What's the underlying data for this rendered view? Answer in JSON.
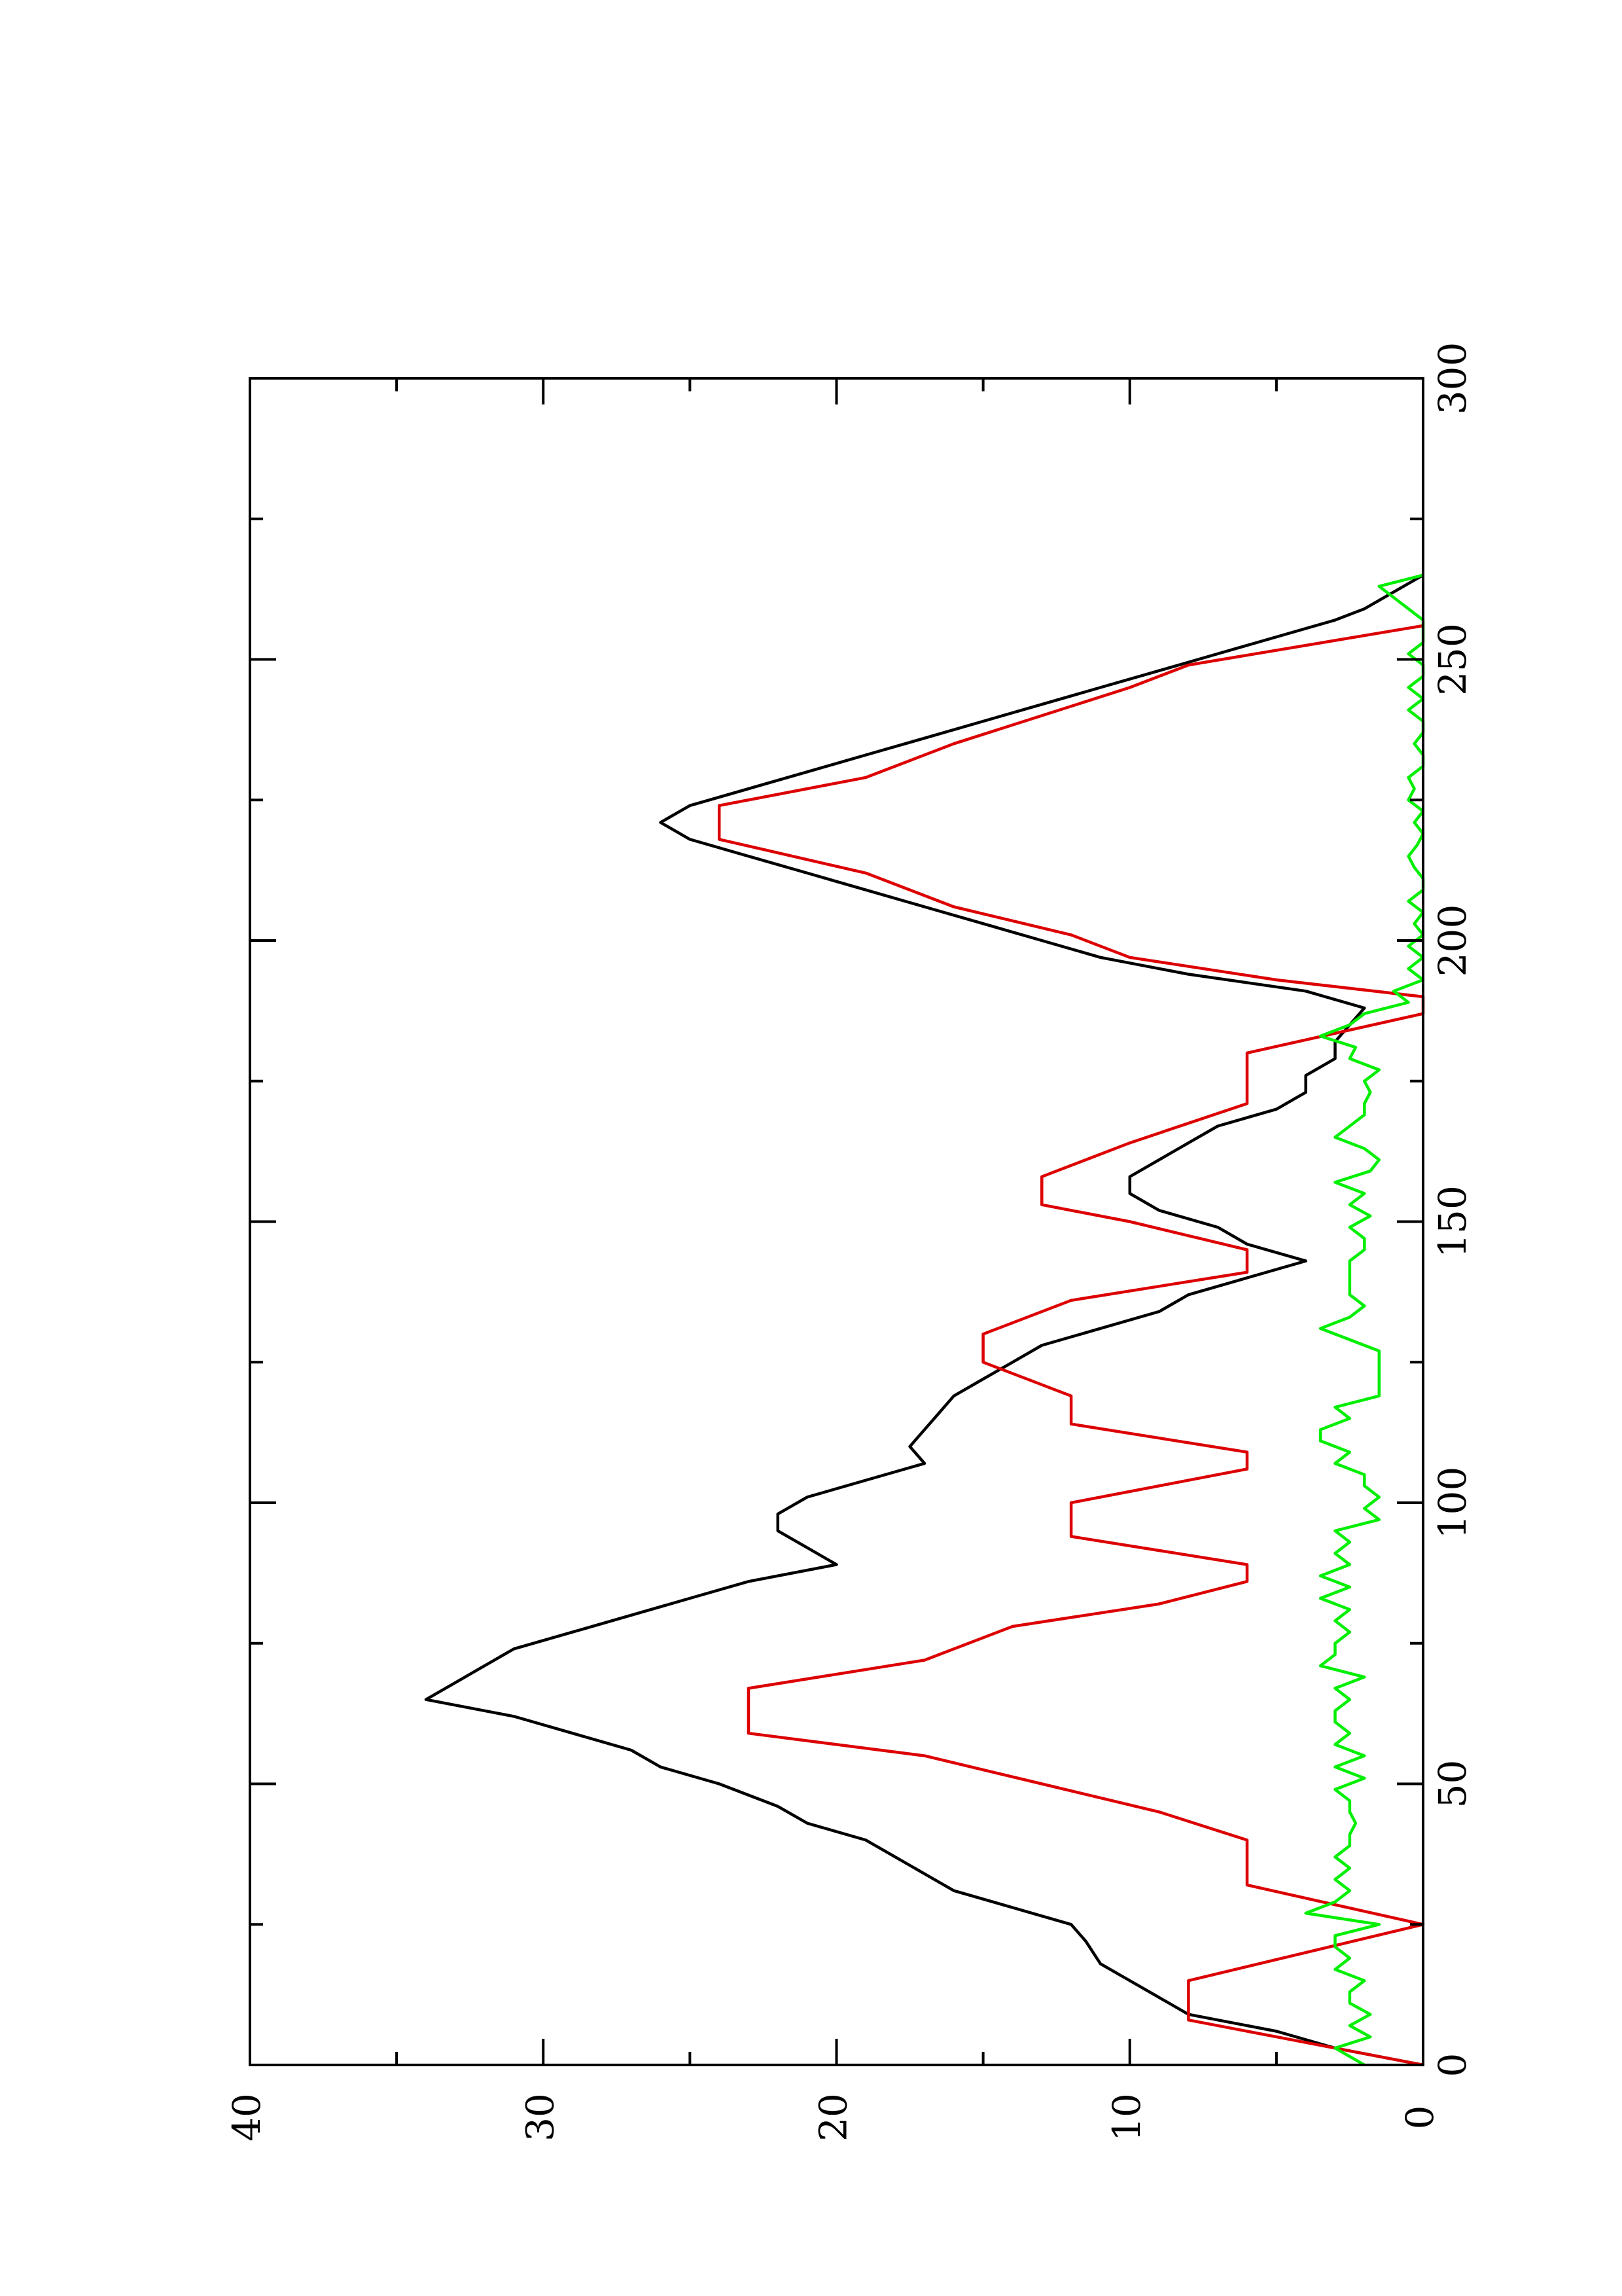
{
  "chart_data": {
    "type": "line",
    "orientation": "rotated-90-ccw",
    "title": "",
    "xlabel": "",
    "ylabel": "",
    "xlim": [
      0,
      300
    ],
    "ylim": [
      0,
      40
    ],
    "x_ticks": [
      0,
      50,
      100,
      150,
      200,
      250,
      300
    ],
    "x_tick_labels": [
      "0",
      "50",
      "100",
      "150",
      "200",
      "250",
      "300"
    ],
    "y_ticks": [
      0,
      10,
      20,
      30,
      40
    ],
    "y_tick_labels": [
      "0",
      "10",
      "20",
      "30",
      "40"
    ],
    "grid": false,
    "legend": "none",
    "series": [
      {
        "color": "#000000",
        "points": [
          [
            0,
            0
          ],
          [
            3,
            3
          ],
          [
            6,
            5
          ],
          [
            9,
            8
          ],
          [
            12,
            9
          ],
          [
            15,
            10
          ],
          [
            18,
            11
          ],
          [
            22,
            11.5
          ],
          [
            25,
            12
          ],
          [
            28,
            14
          ],
          [
            31,
            16
          ],
          [
            34,
            17
          ],
          [
            37,
            18
          ],
          [
            40,
            19
          ],
          [
            43,
            21
          ],
          [
            46,
            22
          ],
          [
            50,
            24
          ],
          [
            53,
            26
          ],
          [
            56,
            27
          ],
          [
            59,
            29
          ],
          [
            62,
            31
          ],
          [
            65,
            34
          ],
          [
            68,
            33
          ],
          [
            71,
            32
          ],
          [
            74,
            31
          ],
          [
            77,
            29
          ],
          [
            80,
            27
          ],
          [
            83,
            25
          ],
          [
            86,
            23
          ],
          [
            89,
            20
          ],
          [
            92,
            21
          ],
          [
            95,
            22
          ],
          [
            98,
            22
          ],
          [
            101,
            21
          ],
          [
            104,
            19
          ],
          [
            107,
            17
          ],
          [
            110,
            17.5
          ],
          [
            113,
            17
          ],
          [
            116,
            16.5
          ],
          [
            119,
            16
          ],
          [
            122,
            15
          ],
          [
            125,
            14
          ],
          [
            128,
            13
          ],
          [
            131,
            11
          ],
          [
            134,
            9
          ],
          [
            137,
            8
          ],
          [
            140,
            6
          ],
          [
            143,
            4
          ],
          [
            146,
            6
          ],
          [
            149,
            7
          ],
          [
            152,
            9
          ],
          [
            155,
            10
          ],
          [
            158,
            10
          ],
          [
            161,
            9
          ],
          [
            164,
            8
          ],
          [
            167,
            7
          ],
          [
            170,
            5
          ],
          [
            173,
            4
          ],
          [
            176,
            4
          ],
          [
            179,
            3
          ],
          [
            182,
            3
          ],
          [
            185,
            2.5
          ],
          [
            188,
            2
          ],
          [
            191,
            4
          ],
          [
            194,
            8
          ],
          [
            197,
            11
          ],
          [
            200,
            13
          ],
          [
            203,
            15
          ],
          [
            206,
            17
          ],
          [
            209,
            19
          ],
          [
            212,
            21
          ],
          [
            215,
            23
          ],
          [
            218,
            25
          ],
          [
            221,
            26
          ],
          [
            224,
            25
          ],
          [
            227,
            23
          ],
          [
            230,
            21
          ],
          [
            233,
            19
          ],
          [
            236,
            17
          ],
          [
            239,
            15
          ],
          [
            242,
            13
          ],
          [
            245,
            11
          ],
          [
            248,
            9
          ],
          [
            251,
            7
          ],
          [
            254,
            5
          ],
          [
            257,
            3
          ],
          [
            259,
            2
          ],
          [
            262,
            1
          ],
          [
            265,
            0
          ]
        ]
      },
      {
        "color": "#dd0000",
        "points": [
          [
            0,
            0
          ],
          [
            5,
            5
          ],
          [
            8,
            8
          ],
          [
            15,
            8
          ],
          [
            25,
            0
          ],
          [
            32,
            6
          ],
          [
            40,
            6
          ],
          [
            45,
            9
          ],
          [
            50,
            13
          ],
          [
            55,
            17
          ],
          [
            59,
            23
          ],
          [
            67,
            23
          ],
          [
            72,
            17
          ],
          [
            78,
            14
          ],
          [
            82,
            9
          ],
          [
            86,
            6
          ],
          [
            89,
            6
          ],
          [
            94,
            12
          ],
          [
            100,
            12
          ],
          [
            106,
            6
          ],
          [
            109,
            6
          ],
          [
            114,
            12
          ],
          [
            119,
            12
          ],
          [
            125,
            15
          ],
          [
            130,
            15
          ],
          [
            136,
            12
          ],
          [
            141,
            6
          ],
          [
            145,
            6
          ],
          [
            150,
            10
          ],
          [
            153,
            13
          ],
          [
            158,
            13
          ],
          [
            164,
            10
          ],
          [
            171,
            6
          ],
          [
            180,
            6
          ],
          [
            187,
            0
          ],
          [
            190,
            0
          ],
          [
            193,
            5
          ],
          [
            197,
            10
          ],
          [
            201,
            12
          ],
          [
            206,
            16
          ],
          [
            212,
            19
          ],
          [
            218,
            24
          ],
          [
            224,
            24
          ],
          [
            229,
            19
          ],
          [
            235,
            16
          ],
          [
            240,
            13
          ],
          [
            245,
            10
          ],
          [
            249,
            8
          ],
          [
            256,
            0
          ]
        ]
      },
      {
        "color": "#00ee00",
        "points": [
          [
            0,
            2
          ],
          [
            3,
            3
          ],
          [
            5,
            1.8
          ],
          [
            7,
            2.5
          ],
          [
            9,
            1.8
          ],
          [
            11,
            2.5
          ],
          [
            13,
            2.5
          ],
          [
            15,
            2
          ],
          [
            17,
            3
          ],
          [
            19,
            2.5
          ],
          [
            21,
            3
          ],
          [
            23,
            3
          ],
          [
            25,
            1.5
          ],
          [
            27,
            4
          ],
          [
            29,
            3
          ],
          [
            31,
            2.5
          ],
          [
            33,
            3
          ],
          [
            35,
            2.5
          ],
          [
            37,
            3
          ],
          [
            39,
            2.5
          ],
          [
            41,
            2.5
          ],
          [
            43,
            2.3
          ],
          [
            45,
            2.5
          ],
          [
            47,
            2.5
          ],
          [
            49,
            3
          ],
          [
            51,
            2
          ],
          [
            53,
            3
          ],
          [
            55,
            2
          ],
          [
            57,
            3
          ],
          [
            59,
            2.5
          ],
          [
            61,
            3
          ],
          [
            63,
            3
          ],
          [
            65,
            2.5
          ],
          [
            67,
            3
          ],
          [
            69,
            2
          ],
          [
            71,
            3.5
          ],
          [
            73,
            3
          ],
          [
            75,
            3
          ],
          [
            77,
            2.5
          ],
          [
            79,
            3
          ],
          [
            81,
            2.5
          ],
          [
            83,
            3.5
          ],
          [
            85,
            2.5
          ],
          [
            87,
            3.5
          ],
          [
            89,
            2.5
          ],
          [
            91,
            3
          ],
          [
            93,
            2.5
          ],
          [
            95,
            3
          ],
          [
            97,
            1.5
          ],
          [
            99,
            2
          ],
          [
            101,
            1.5
          ],
          [
            103,
            2
          ],
          [
            105,
            2
          ],
          [
            107,
            3
          ],
          [
            109,
            2.5
          ],
          [
            111,
            3.5
          ],
          [
            113,
            3.5
          ],
          [
            115,
            2.5
          ],
          [
            117,
            3
          ],
          [
            119,
            1.5
          ],
          [
            121,
            1.5
          ],
          [
            123,
            1.5
          ],
          [
            125,
            1.5
          ],
          [
            127,
            1.5
          ],
          [
            129,
            2.5
          ],
          [
            131,
            3.5
          ],
          [
            133,
            2.5
          ],
          [
            135,
            2
          ],
          [
            137,
            2.5
          ],
          [
            139,
            2.5
          ],
          [
            141,
            2.5
          ],
          [
            143,
            2.5
          ],
          [
            145,
            2
          ],
          [
            147,
            2
          ],
          [
            149,
            2.5
          ],
          [
            151,
            1.8
          ],
          [
            153,
            2.5
          ],
          [
            155,
            2
          ],
          [
            157,
            3
          ],
          [
            159,
            1.8
          ],
          [
            161,
            1.5
          ],
          [
            163,
            2
          ],
          [
            165,
            3
          ],
          [
            167,
            2.5
          ],
          [
            169,
            2
          ],
          [
            171,
            2
          ],
          [
            173,
            1.8
          ],
          [
            175,
            2
          ],
          [
            177,
            1.5
          ],
          [
            179,
            2.5
          ],
          [
            181,
            2.3
          ],
          [
            183,
            3.5
          ],
          [
            185,
            2.5
          ],
          [
            187,
            2
          ],
          [
            189,
            0.5
          ],
          [
            191,
            1
          ],
          [
            193,
            0
          ],
          [
            195,
            0.5
          ],
          [
            197,
            0
          ],
          [
            199,
            0.5
          ],
          [
            201,
            0
          ],
          [
            203,
            0.3
          ],
          [
            205,
            0
          ],
          [
            207,
            0.5
          ],
          [
            209,
            0
          ],
          [
            211,
            0
          ],
          [
            213,
            0.3
          ],
          [
            215,
            0.5
          ],
          [
            217,
            0.2
          ],
          [
            219,
            0
          ],
          [
            221,
            0.3
          ],
          [
            223,
            0
          ],
          [
            225,
            0.5
          ],
          [
            227,
            0.3
          ],
          [
            229,
            0.5
          ],
          [
            231,
            0
          ],
          [
            233,
            0
          ],
          [
            235,
            0.3
          ],
          [
            237,
            0
          ],
          [
            239,
            0
          ],
          [
            241,
            0.5
          ],
          [
            243,
            0
          ],
          [
            245,
            0.5
          ],
          [
            247,
            0
          ],
          [
            249,
            0
          ],
          [
            251,
            0.5
          ],
          [
            253,
            0
          ],
          [
            255,
            0
          ],
          [
            257,
            0
          ],
          [
            259,
            0.5
          ],
          [
            261,
            1
          ],
          [
            263,
            1.5
          ],
          [
            265,
            0
          ]
        ]
      }
    ]
  }
}
